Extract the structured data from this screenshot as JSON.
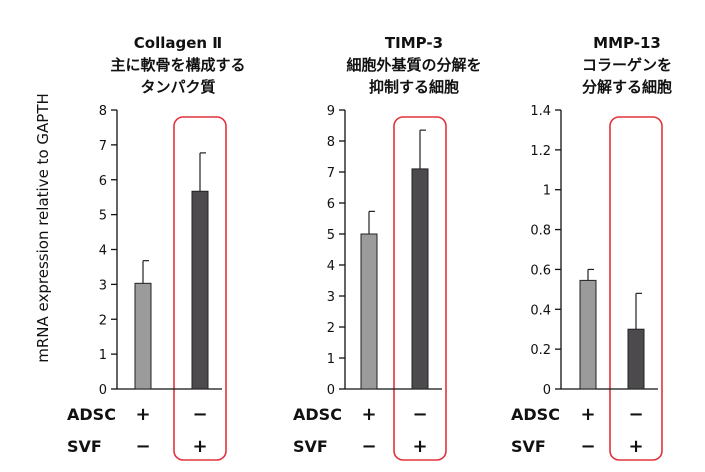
{
  "figure": {
    "ylabel": "mRNA expression relative to GAPTH",
    "row_labels": [
      "ADSC",
      "SVF"
    ]
  },
  "chart_data": [
    {
      "type": "bar",
      "title": [
        "Collagen Ⅱ",
        "主に軟骨を構成する",
        "タンパク質"
      ],
      "ylabel": "mRNA expression relative to GAPTH",
      "ylim": [
        0,
        8
      ],
      "yticks": [
        0,
        1,
        2,
        3,
        4,
        5,
        6,
        7,
        8
      ],
      "ytick_labels": [
        "0",
        "1",
        "2",
        "3",
        "4",
        "5",
        "6",
        "7",
        "8"
      ],
      "categories": [
        "ADSC+ / SVF−",
        "ADSC− / SVF+"
      ],
      "values": [
        3.03,
        5.67
      ],
      "errors": [
        0.65,
        1.1
      ],
      "bar_colors": [
        "#9b9b9b",
        "#4d4a4d"
      ],
      "adsc": [
        "+",
        "−"
      ],
      "svf": [
        "−",
        "+"
      ],
      "highlight_index": 1,
      "highlight_color": "#e2333c",
      "grid": false
    },
    {
      "type": "bar",
      "title": [
        "TIMP-3",
        "細胞外基質の分解を",
        "抑制する細胞"
      ],
      "ylabel": "mRNA expression relative to GAPTH",
      "ylim": [
        0,
        9
      ],
      "yticks": [
        0,
        1,
        2,
        3,
        4,
        5,
        6,
        7,
        8,
        9
      ],
      "ytick_labels": [
        "0",
        "1",
        "2",
        "3",
        "4",
        "5",
        "6",
        "7",
        "8",
        "9"
      ],
      "categories": [
        "ADSC+ / SVF−",
        "ADSC− / SVF+"
      ],
      "values": [
        5.0,
        7.1
      ],
      "errors": [
        0.73,
        1.25
      ],
      "bar_colors": [
        "#9b9b9b",
        "#4d4a4d"
      ],
      "adsc": [
        "+",
        "−"
      ],
      "svf": [
        "−",
        "+"
      ],
      "highlight_index": 1,
      "highlight_color": "#e2333c",
      "grid": false
    },
    {
      "type": "bar",
      "title": [
        "MMP-13",
        "コラーゲンを",
        "分解する細胞"
      ],
      "ylabel": "mRNA expression relative to GAPTH",
      "ylim": [
        0,
        1.4
      ],
      "yticks": [
        0,
        0.2,
        0.4,
        0.6,
        0.8,
        1.0,
        1.2,
        1.4
      ],
      "ytick_labels": [
        "0",
        "0.2",
        "0.4",
        "0.6",
        "0.8",
        "1",
        "1.2",
        "1.4"
      ],
      "categories": [
        "ADSC+ / SVF−",
        "ADSC− / SVF+"
      ],
      "values": [
        0.545,
        0.3
      ],
      "errors": [
        0.055,
        0.18
      ],
      "bar_colors": [
        "#9b9b9b",
        "#4d4a4d"
      ],
      "adsc": [
        "+",
        "−"
      ],
      "svf": [
        "−",
        "+"
      ],
      "highlight_index": 1,
      "highlight_color": "#e2333c",
      "grid": false
    }
  ]
}
